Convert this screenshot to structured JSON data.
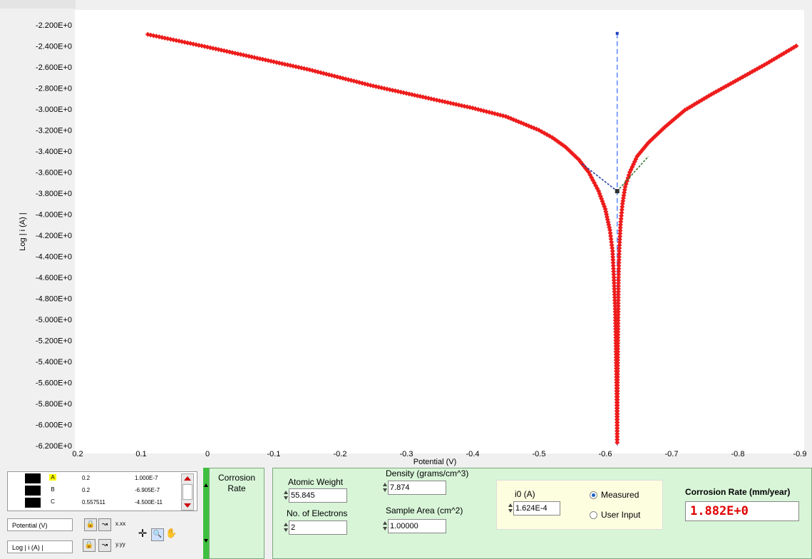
{
  "colors": {
    "data": "#ee1c1c",
    "fit_line": "#1f3f9f",
    "fit_line_anodic": "#2f6f2f",
    "ecorr_line": "#4f7fff",
    "panel_green": "#d8f5d8",
    "rate_text": "#e00000"
  },
  "chart_data": {
    "type": "scatter",
    "ylabel": "Log | i (A) |",
    "xlabel": "Potential (V)",
    "xlim": [
      0.2,
      -0.9
    ],
    "ylim": [
      -6.2,
      -2.2
    ],
    "x_reversed": true,
    "y_ticks": [
      "-2.200E+0",
      "-2.400E+0",
      "-2.600E+0",
      "-2.800E+0",
      "-3.000E+0",
      "-3.200E+0",
      "-3.400E+0",
      "-3.600E+0",
      "-3.800E+0",
      "-4.000E+0",
      "-4.200E+0",
      "-4.400E+0",
      "-4.600E+0",
      "-4.800E+0",
      "-5.000E+0",
      "-5.200E+0",
      "-5.400E+0",
      "-5.600E+0",
      "-5.800E+0",
      "-6.000E+0",
      "-6.200E+0"
    ],
    "x_ticks": [
      "0.2",
      "0.1",
      "0",
      "-0.1",
      "-0.2",
      "-0.3",
      "-0.4",
      "-0.5",
      "-0.6",
      "-0.7",
      "-0.8",
      "-0.9"
    ],
    "series": [
      {
        "marker": "diamond",
        "x": [
          0.09,
          0.06,
          0.03,
          0.0,
          -0.05,
          -0.1,
          -0.15,
          -0.2,
          -0.25,
          -0.3,
          -0.35,
          -0.4,
          -0.45,
          -0.5,
          -0.52,
          -0.54,
          -0.56,
          -0.575,
          -0.59,
          -0.6,
          -0.607,
          -0.611,
          -0.613,
          -0.615,
          -0.616,
          -0.617,
          -0.618,
          -0.6185,
          -0.619,
          -0.6195,
          -0.62,
          -0.621,
          -0.623,
          -0.626,
          -0.63,
          -0.637,
          -0.648,
          -0.665,
          -0.69,
          -0.72,
          -0.76,
          -0.8,
          -0.84,
          -0.888
        ],
        "y": [
          -2.29,
          -2.33,
          -2.37,
          -2.41,
          -2.48,
          -2.55,
          -2.62,
          -2.7,
          -2.78,
          -2.85,
          -2.92,
          -2.99,
          -3.07,
          -3.2,
          -3.27,
          -3.36,
          -3.48,
          -3.6,
          -3.78,
          -3.95,
          -4.15,
          -4.35,
          -4.6,
          -4.9,
          -5.2,
          -5.6,
          -6.17,
          -5.6,
          -5.2,
          -4.9,
          -4.6,
          -4.35,
          -4.1,
          -3.9,
          -3.74,
          -3.6,
          -3.45,
          -3.32,
          -3.17,
          -3.01,
          -2.86,
          -2.72,
          -2.58,
          -2.4
        ]
      }
    ],
    "fit_lines": [
      {
        "x": [
          -0.565,
          -0.618
        ],
        "y": [
          -3.52,
          -3.78
        ]
      },
      {
        "x": [
          -0.618,
          -0.665
        ],
        "y": [
          -3.78,
          -3.45
        ]
      }
    ],
    "ecorr": {
      "x": -0.618,
      "y_range": [
        -2.28,
        -6.2
      ],
      "point_y": -3.78
    }
  },
  "cursors": {
    "rows": [
      {
        "name": "A",
        "x": "0.2",
        "y": "1.000E-7",
        "selected": true
      },
      {
        "name": "B",
        "x": "0.2",
        "y": "-6.905E-7",
        "selected": false
      },
      {
        "name": "C",
        "x": "0.557511",
        "y": "-4.500E-11",
        "selected": false
      }
    ],
    "x_axis": "Potential (V)",
    "y_axis": "Log | i (A) |",
    "x_format": "x.xx",
    "y_format": "y.yy"
  },
  "tab": {
    "label_line1": "Corrosion",
    "label_line2": "Rate"
  },
  "form": {
    "atomic_weight_label": "Atomic Weight",
    "atomic_weight_value": "55.845",
    "density_label": "Density (grams/cm^3)",
    "density_value": "7.874",
    "electrons_label": "No. of Electrons",
    "electrons_value": "2",
    "area_label": "Sample Area (cm^2)",
    "area_value": "1.00000",
    "i0_label": "i0 (A)",
    "i0_value": "1.624E-4",
    "measured_label": "Measured",
    "user_input_label": "User Input",
    "rate_label": "Corrosion Rate (mm/year)",
    "rate_value": "1.882E+0"
  }
}
